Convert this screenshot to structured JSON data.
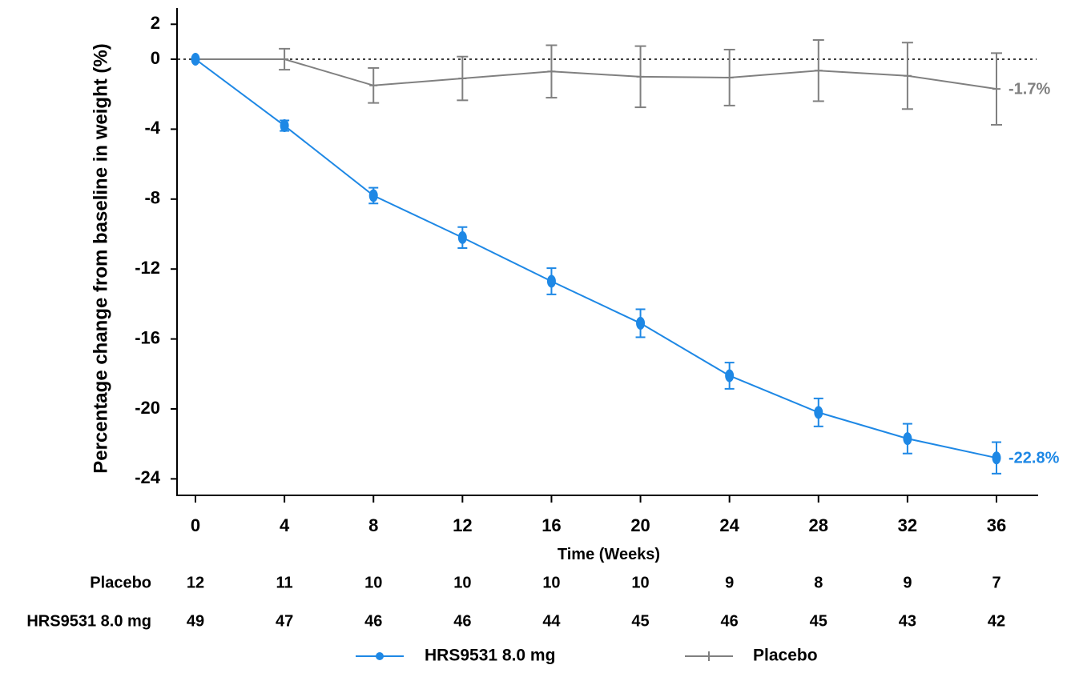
{
  "chart_data": {
    "type": "line",
    "ylabel": "Percentage change from baseline in weight (%)",
    "xlabel": "Time (Weeks)",
    "x": [
      0,
      4,
      8,
      12,
      16,
      20,
      24,
      28,
      32,
      36
    ],
    "x_tick_labels": [
      "0",
      "4",
      "8",
      "12",
      "16",
      "20",
      "24",
      "28",
      "32",
      "36"
    ],
    "y_ticks": [
      2,
      0,
      -4,
      -8,
      -12,
      -16,
      -20,
      -24
    ],
    "y_tick_labels": [
      "2",
      "0",
      "-4",
      "-8",
      "-12",
      "-16",
      "-20",
      "-24"
    ],
    "ylim": [
      -25,
      3
    ],
    "xlim": [
      -0.8,
      37.8
    ],
    "reference_line": {
      "y": 0,
      "style": "dotted"
    },
    "grid": false,
    "legend_position": "bottom",
    "series": [
      {
        "name": "HRS9531 8.0 mg",
        "color": "#1e88e5",
        "marker": "circle",
        "values": [
          0.0,
          -3.8,
          -7.8,
          -10.2,
          -12.7,
          -15.1,
          -18.1,
          -20.2,
          -21.7,
          -22.8
        ],
        "err": [
          0.0,
          0.3,
          0.45,
          0.6,
          0.75,
          0.8,
          0.75,
          0.8,
          0.85,
          0.9
        ],
        "end_label": "-22.8%"
      },
      {
        "name": "Placebo",
        "color": "#808080",
        "marker": "plus",
        "values": [
          0.0,
          0.0,
          -1.5,
          -1.1,
          -0.7,
          -1.0,
          -1.05,
          -0.65,
          -0.95,
          -1.7
        ],
        "err": [
          0.0,
          0.6,
          1.0,
          1.25,
          1.5,
          1.75,
          1.6,
          1.75,
          1.9,
          2.05
        ],
        "end_label": "-1.7%"
      }
    ],
    "at_risk_table": {
      "rows": [
        {
          "label": "Placebo",
          "values": [
            "12",
            "11",
            "10",
            "10",
            "10",
            "10",
            "9",
            "8",
            "9",
            "7"
          ]
        },
        {
          "label": "HRS9531 8.0 mg",
          "values": [
            "49",
            "47",
            "46",
            "46",
            "44",
            "45",
            "46",
            "45",
            "43",
            "42"
          ]
        }
      ]
    },
    "legend": [
      {
        "label": "HRS9531 8.0 mg",
        "color": "#1e88e5",
        "marker": "circle"
      },
      {
        "label": "Placebo",
        "color": "#808080",
        "marker": "plus"
      }
    ]
  }
}
